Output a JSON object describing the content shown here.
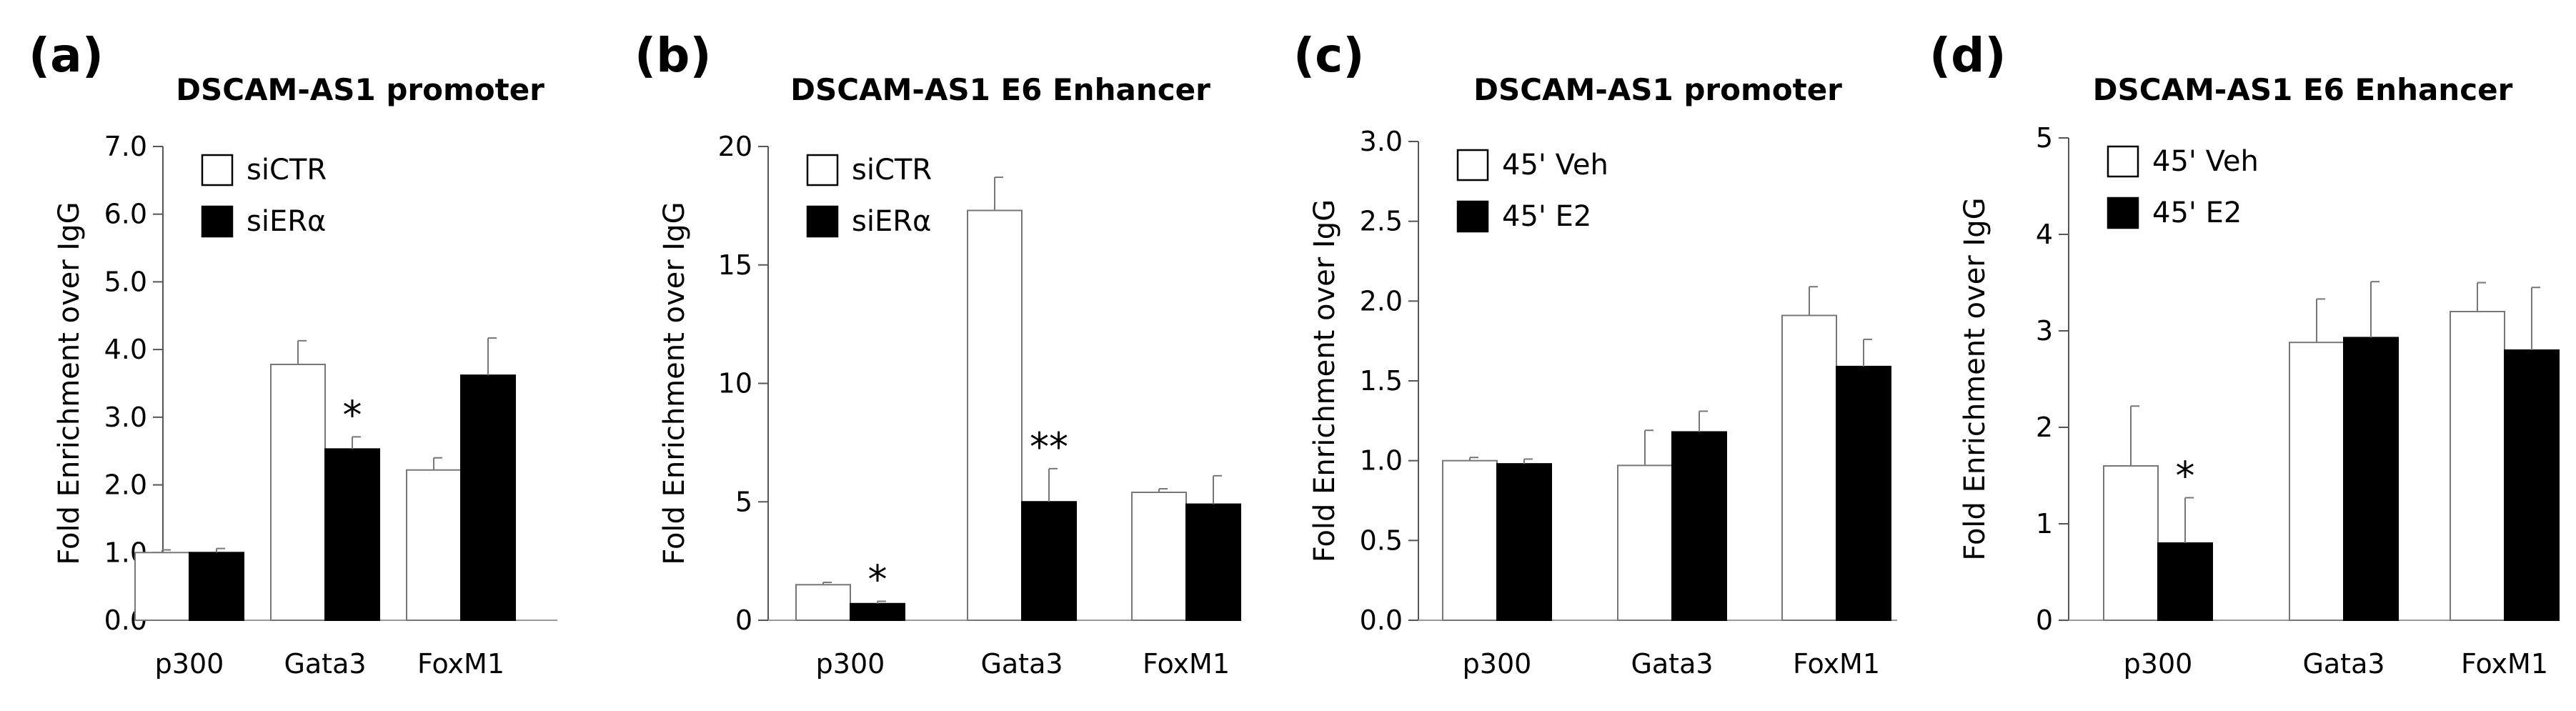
{
  "chart_data": [
    {
      "type": "bar",
      "panel": "(a)",
      "title": "DSCAM-AS1 promoter",
      "ylabel": "Fold Enrichment over IgG",
      "categories": [
        "p300",
        "Gata3",
        "FoxM1"
      ],
      "ylim": [
        0,
        7
      ],
      "yticks": [
        "0.0",
        "1.0",
        "2.0",
        "3.0",
        "4.0",
        "5.0",
        "6.0",
        "7.0"
      ],
      "legend_position": "top-left",
      "series": [
        {
          "name": "siCTR",
          "color": "#ffffff",
          "values": [
            1.0,
            3.78,
            2.22
          ],
          "errors": [
            0.04,
            0.35,
            0.18
          ]
        },
        {
          "name": "siERα",
          "color": "#000000",
          "values": [
            1.0,
            2.53,
            3.62
          ],
          "errors": [
            0.06,
            0.18,
            0.55
          ]
        }
      ],
      "annotations": [
        {
          "series": 1,
          "category": 1,
          "text": "*"
        }
      ]
    },
    {
      "type": "bar",
      "panel": "(b)",
      "title": "DSCAM-AS1 E6 Enhancer",
      "ylabel": "Fold Enrichment over IgG",
      "categories": [
        "p300",
        "Gata3",
        "FoxM1"
      ],
      "ylim": [
        0,
        20
      ],
      "yticks": [
        "0",
        "5",
        "10",
        "15",
        "20"
      ],
      "legend_position": "top-left",
      "series": [
        {
          "name": "siCTR",
          "color": "#ffffff",
          "values": [
            1.5,
            17.3,
            5.4
          ],
          "errors": [
            0.1,
            1.4,
            0.15
          ]
        },
        {
          "name": "siERα",
          "color": "#000000",
          "values": [
            0.7,
            5.0,
            4.9
          ],
          "errors": [
            0.1,
            1.4,
            1.2
          ]
        }
      ],
      "annotations": [
        {
          "series": 1,
          "category": 0,
          "text": "*"
        },
        {
          "series": 1,
          "category": 1,
          "text": "**"
        }
      ]
    },
    {
      "type": "bar",
      "panel": "(c)",
      "title": "DSCAM-AS1 promoter",
      "ylabel": "Fold Enrichment over IgG",
      "categories": [
        "p300",
        "Gata3",
        "FoxM1"
      ],
      "ylim": [
        0,
        3
      ],
      "yticks": [
        "0.0",
        "0.5",
        "1.0",
        "1.5",
        "2.0",
        "2.5",
        "3.0"
      ],
      "legend_position": "top-left",
      "series": [
        {
          "name": "45' Veh",
          "color": "#ffffff",
          "values": [
            1.0,
            0.97,
            1.91
          ],
          "errors": [
            0.02,
            0.22,
            0.18
          ]
        },
        {
          "name": "45' E2",
          "color": "#000000",
          "values": [
            0.98,
            1.18,
            1.59
          ],
          "errors": [
            0.03,
            0.13,
            0.17
          ]
        }
      ],
      "annotations": []
    },
    {
      "type": "bar",
      "panel": "(d)",
      "title": "DSCAM-AS1 E6 Enhancer",
      "ylabel": "Fold Enrichment over IgG",
      "categories": [
        "p300",
        "Gata3",
        "FoxM1"
      ],
      "ylim": [
        0,
        5
      ],
      "yticks": [
        "0",
        "1",
        "2",
        "3",
        "4",
        "5"
      ],
      "legend_position": "top-left",
      "series": [
        {
          "name": "45' Veh",
          "color": "#ffffff",
          "values": [
            1.6,
            2.88,
            3.2
          ],
          "errors": [
            0.62,
            0.45,
            0.3
          ]
        },
        {
          "name": "45' E2",
          "color": "#000000",
          "values": [
            0.8,
            2.93,
            2.8
          ],
          "errors": [
            0.47,
            0.58,
            0.65
          ]
        }
      ],
      "annotations": [
        {
          "series": 1,
          "category": 0,
          "text": "*"
        }
      ]
    }
  ]
}
